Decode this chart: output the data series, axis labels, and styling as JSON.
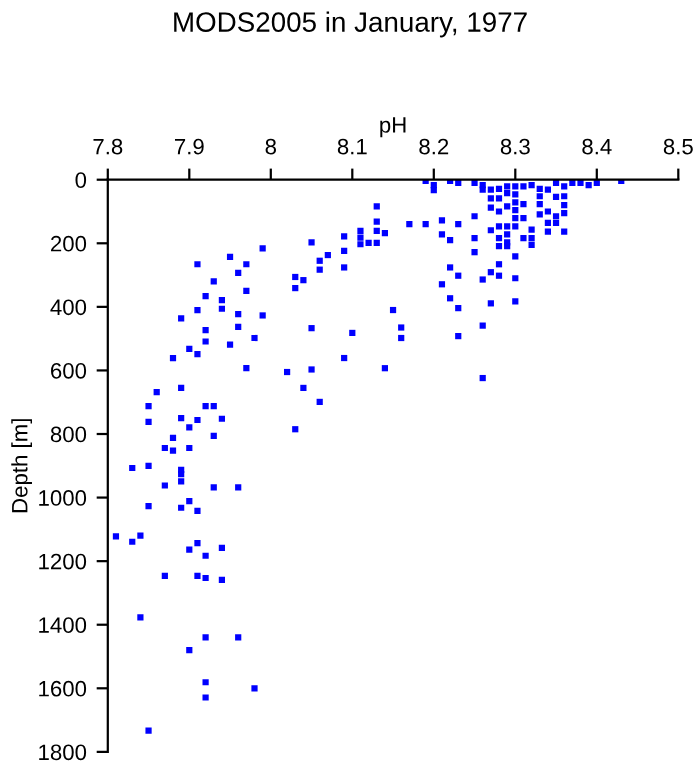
{
  "chart_data": {
    "type": "scatter",
    "title": "MODS2005 in January, 1977",
    "xlabel": "pH",
    "ylabel": "Depth [m]",
    "x": [
      8.13,
      8.13,
      8.11,
      8.11,
      8.13,
      8.14,
      8.12,
      8.13,
      8.11,
      8.09,
      8.09,
      8.09,
      8.07,
      8.06,
      8.05,
      8.06,
      8.04,
      8.03,
      8.03,
      7.99,
      7.95,
      7.97,
      7.91,
      7.96,
      7.93,
      7.97,
      7.92,
      7.94,
      7.94,
      7.91,
      7.96,
      7.99,
      7.89,
      7.92,
      7.96,
      8.05,
      8.15,
      8.16,
      8.16,
      8.1,
      7.98,
      7.92,
      7.95,
      7.9,
      7.91,
      7.88,
      8.09,
      7.97,
      8.14,
      8.02,
      8.05,
      8.04,
      8.06,
      7.86,
      7.89,
      7.85,
      7.92,
      7.93,
      7.85,
      7.89,
      7.94,
      7.91,
      7.9,
      7.88,
      7.93,
      8.03,
      7.87,
      7.88,
      7.9,
      7.83,
      7.85,
      7.89,
      7.89,
      8.17,
      8.19,
      8.21,
      8.23,
      8.21,
      8.22,
      8.25,
      8.25,
      8.25,
      8.22,
      8.23,
      8.21,
      8.22,
      8.23,
      8.26,
      8.27,
      8.28,
      8.28,
      8.27,
      8.3,
      8.3,
      8.3,
      8.26,
      8.23,
      8.26,
      8.27,
      8.28,
      8.27,
      8.28,
      8.29,
      8.29,
      8.28,
      8.27,
      8.29,
      8.28,
      8.29,
      8.28,
      8.29,
      8.3,
      8.3,
      8.3,
      8.3,
      8.3,
      8.3,
      8.31,
      8.31,
      8.31,
      8.31,
      8.32,
      8.32,
      8.32,
      8.33,
      8.33,
      8.33,
      8.33,
      8.34,
      8.34,
      8.34,
      8.34,
      8.35,
      8.35,
      8.36,
      8.36,
      8.36,
      8.36,
      8.36,
      8.35,
      8.19,
      8.2,
      8.2,
      8.22,
      8.23,
      8.25,
      8.26,
      8.26,
      8.27,
      8.28,
      8.29,
      8.29,
      8.32,
      8.35,
      8.37,
      8.38,
      8.39,
      8.4,
      8.43,
      7.87,
      7.89,
      7.93,
      7.96,
      7.85,
      7.89,
      7.9,
      7.91,
      7.81,
      7.83,
      7.84,
      7.9,
      7.91,
      7.94,
      7.92,
      7.87,
      7.91,
      7.92,
      7.94,
      7.84,
      7.92,
      7.96,
      7.9,
      7.92,
      7.98,
      7.92,
      7.85
    ],
    "values": [
      84,
      132,
      161,
      182,
      161,
      168,
      199,
      199,
      203,
      178,
      224,
      276,
      237,
      255,
      197,
      283,
      316,
      306,
      341,
      216,
      243,
      266,
      266,
      293,
      320,
      350,
      366,
      379,
      406,
      410,
      423,
      427,
      436,
      473,
      463,
      467,
      410,
      465,
      498,
      482,
      498,
      509,
      519,
      532,
      549,
      561,
      561,
      593,
      593,
      605,
      597,
      655,
      699,
      668,
      655,
      712,
      712,
      712,
      762,
      750,
      752,
      756,
      779,
      812,
      806,
      785,
      844,
      852,
      844,
      907,
      900,
      913,
      926,
      140,
      140,
      128,
      140,
      172,
      190,
      115,
      184,
      228,
      276,
      302,
      329,
      373,
      404,
      314,
      291,
      266,
      302,
      389,
      383,
      241,
      310,
      459,
      492,
      624,
      59,
      59,
      88,
      100,
      84,
      147,
      147,
      159,
      172,
      184,
      197,
      209,
      209,
      21,
      46,
      71,
      96,
      121,
      147,
      21,
      77,
      121,
      184,
      157,
      184,
      205,
      29,
      52,
      77,
      109,
      31,
      100,
      136,
      163,
      115,
      136,
      21,
      52,
      80,
      105,
      163,
      54,
      4,
      17,
      33,
      4,
      10,
      10,
      17,
      31,
      31,
      29,
      21,
      42,
      17,
      10,
      10,
      10,
      17,
      10,
      4,
      962,
      949,
      968,
      968,
      1027,
      1032,
      1011,
      1042,
      1122,
      1139,
      1120,
      1164,
      1143,
      1158,
      1183,
      1246,
      1246,
      1253,
      1259,
      1377,
      1440,
      1440,
      1480,
      1581,
      1600,
      1629,
      1733
    ],
    "color": "#0000ff",
    "marker": "square",
    "xlim": [
      7.8,
      8.5
    ],
    "xticks": [
      7.8,
      7.9,
      8,
      8.1,
      8.2,
      8.3,
      8.4,
      8.5
    ],
    "ylim": [
      1800,
      0
    ],
    "yticks": [
      0,
      200,
      400,
      600,
      800,
      1000,
      1200,
      1400,
      1600,
      1800
    ],
    "grid": false,
    "legend": false
  }
}
